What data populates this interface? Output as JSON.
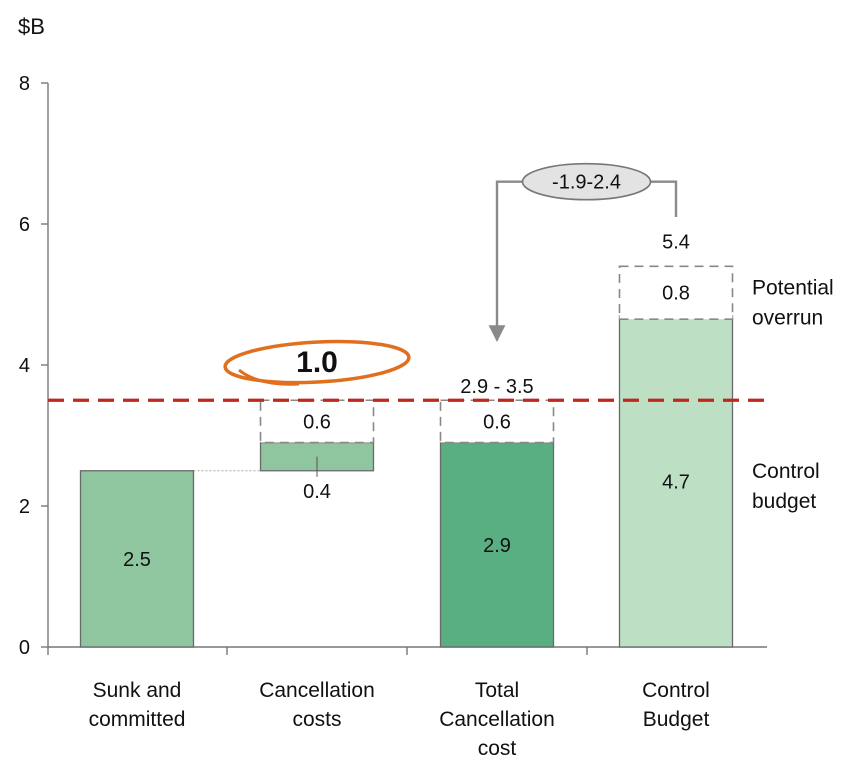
{
  "chart_data": {
    "type": "bar",
    "subtype": "waterfall",
    "unit_label": "$B",
    "ylim": [
      0,
      8
    ],
    "yticks": [
      "0",
      "2",
      "4",
      "6",
      "8"
    ],
    "categories": [
      [
        "Sunk and",
        "committed"
      ],
      [
        "Cancellation",
        "costs"
      ],
      [
        "Total",
        "Cancellation",
        "cost"
      ],
      [
        "Control",
        "Budget"
      ]
    ],
    "bars": [
      {
        "base": 0,
        "value": 2.5,
        "label": "2.5",
        "style": "solid",
        "color": "#8fc59f"
      },
      {
        "base": 2.5,
        "value": 0.4,
        "label": "0.4",
        "style": "solid",
        "color": "#8fc59f"
      },
      {
        "base": 2.9,
        "value": 0.6,
        "label": "0.6",
        "style": "dashed"
      },
      {
        "base": 0,
        "value": 2.9,
        "label": "2.9",
        "style": "solid",
        "color": "#5aaf82"
      },
      {
        "base": 2.9,
        "value": 0.6,
        "label": "0.6",
        "style": "dashed"
      },
      {
        "base": 0,
        "value": 4.7,
        "label": "4.7",
        "style": "solid",
        "color": "#bde0c5"
      },
      {
        "base": 4.65,
        "value": 0.75,
        "label": "0.8",
        "style": "dashed"
      }
    ],
    "totals": [
      {
        "category": 1,
        "label": "1.0",
        "at": 3.9,
        "circled": true
      },
      {
        "category": 2,
        "label": "2.9 - 3.5",
        "at": 3.7
      },
      {
        "category": 3,
        "label": "5.4",
        "at": 5.75
      }
    ],
    "reference_line": {
      "y": 3.5,
      "color": "#c0281e",
      "style": "dashed"
    },
    "callout": {
      "label": "-1.9-2.4",
      "from_category": 3,
      "to_category": 2
    },
    "side_labels": [
      {
        "lines": [
          "Potential",
          "overrun"
        ],
        "at": 5.0
      },
      {
        "lines": [
          "Control",
          "budget"
        ],
        "at": 2.4
      }
    ],
    "grid": false,
    "legend": "none"
  }
}
